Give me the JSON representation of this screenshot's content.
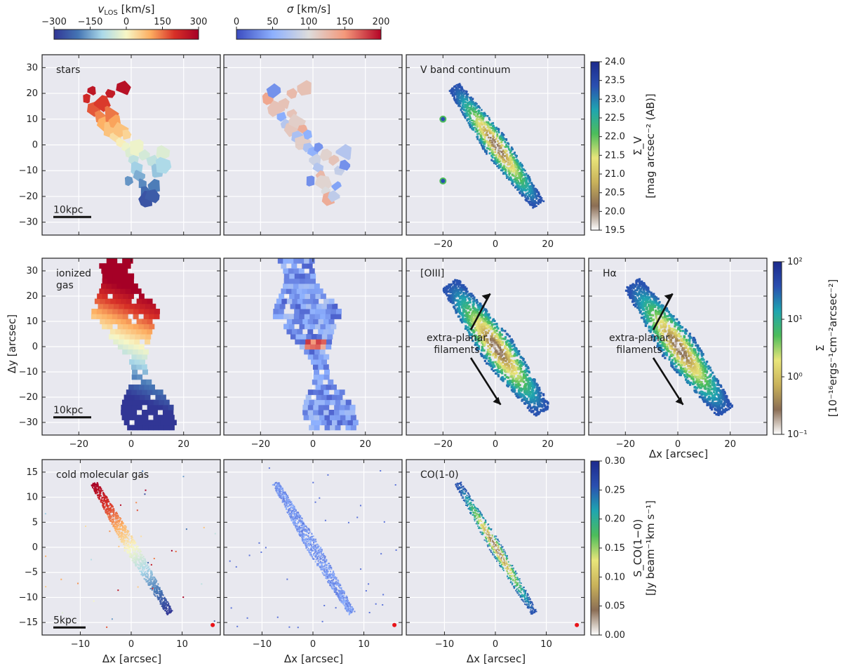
{
  "top_colorbars": [
    {
      "id": "vlos",
      "label": "v_LOS [km/s]",
      "label_main": "v",
      "label_sub": "LOS",
      "label_unit": " [km/s]",
      "ticks": [
        "−300",
        "−150",
        "0",
        "150",
        "300"
      ],
      "colors": [
        "#313695",
        "#4575b4",
        "#abd9e9",
        "#f7f7c6",
        "#fdae61",
        "#d73027",
        "#a50026"
      ]
    },
    {
      "id": "sigma",
      "label": "σ [km/s]",
      "label_main": "σ",
      "label_unit": " [km/s]",
      "ticks": [
        "0",
        "50",
        "100",
        "150",
        "200"
      ],
      "colors": [
        "#3b4cc0",
        "#8db0fe",
        "#dddcdc",
        "#f4987a",
        "#b40426"
      ]
    }
  ],
  "side_colorbars": [
    {
      "id": "vband",
      "ticks": [
        "24.0",
        "23.5",
        "23.0",
        "22.5",
        "22.0",
        "21.5",
        "21.0",
        "20.5",
        "20.0",
        "19.5"
      ],
      "label1": "Σ_V",
      "label2": "[mag arcsec⁻² (AB)]",
      "colors": [
        "#ffffff",
        "#8b6e55",
        "#c9b25a",
        "#e9e57a",
        "#4dbd5a",
        "#1fa5b0",
        "#2a4fb0",
        "#1c2a8c"
      ]
    },
    {
      "id": "sigma-line",
      "ticks": [
        "10²",
        "10¹",
        "10⁰",
        "10⁻¹"
      ],
      "label1": "Σ",
      "label2": "[10⁻¹⁶ergs⁻¹cm⁻²arcsec⁻²]",
      "colors": [
        "#ffffff",
        "#8b6e55",
        "#c9b25a",
        "#e9e57a",
        "#4dbd5a",
        "#1fa5b0",
        "#2a4fb0",
        "#1c2a8c"
      ]
    },
    {
      "id": "co",
      "ticks": [
        "0.30",
        "0.25",
        "0.20",
        "0.15",
        "0.10",
        "0.05",
        "0.00"
      ],
      "label1": "S_CO(1−0)",
      "label2": "[Jy beam⁻¹km s⁻¹]",
      "colors": [
        "#ffffff",
        "#8b6e55",
        "#c9b25a",
        "#e9e57a",
        "#4dbd5a",
        "#1fa5b0",
        "#2a4fb0",
        "#1c2a8c"
      ]
    }
  ],
  "rows": [
    {
      "yticks": [
        "30",
        "20",
        "10",
        "0",
        "−10",
        "−20",
        "−30"
      ],
      "panels": [
        {
          "kind": "vel-stars",
          "label": "stars",
          "scalebar": "10kpc"
        },
        {
          "kind": "disp-stars",
          "label": ""
        },
        {
          "kind": "vband",
          "label": "V band continuum"
        }
      ]
    },
    {
      "yticks": [
        "30",
        "20",
        "10",
        "0",
        "−10",
        "−20",
        "−30"
      ],
      "ylabel": "Δy [arcsec]",
      "panels": [
        {
          "kind": "vel-gas",
          "label": "ionized\ngas",
          "scalebar": "10kpc"
        },
        {
          "kind": "disp-gas",
          "label": ""
        },
        {
          "kind": "line",
          "label": "[OIII]",
          "annotation": "extra-planar\nfilaments"
        },
        {
          "kind": "line",
          "label": "Hα",
          "annotation": "extra-planar\nfilaments"
        }
      ]
    },
    {
      "yticks": [
        "15",
        "10",
        "5",
        "0",
        "−5",
        "−10",
        "−15"
      ],
      "panels": [
        {
          "kind": "vel-co",
          "label": "cold molecular gas",
          "scalebar": "5kpc"
        },
        {
          "kind": "disp-co",
          "label": ""
        },
        {
          "kind": "co",
          "label": "CO(1-0)"
        }
      ]
    }
  ],
  "xticks_wide": [
    "−20",
    "0",
    "20"
  ],
  "xticks_narrow": [
    "−10",
    "0",
    "10"
  ],
  "xlabel": "Δx [arcsec]"
}
